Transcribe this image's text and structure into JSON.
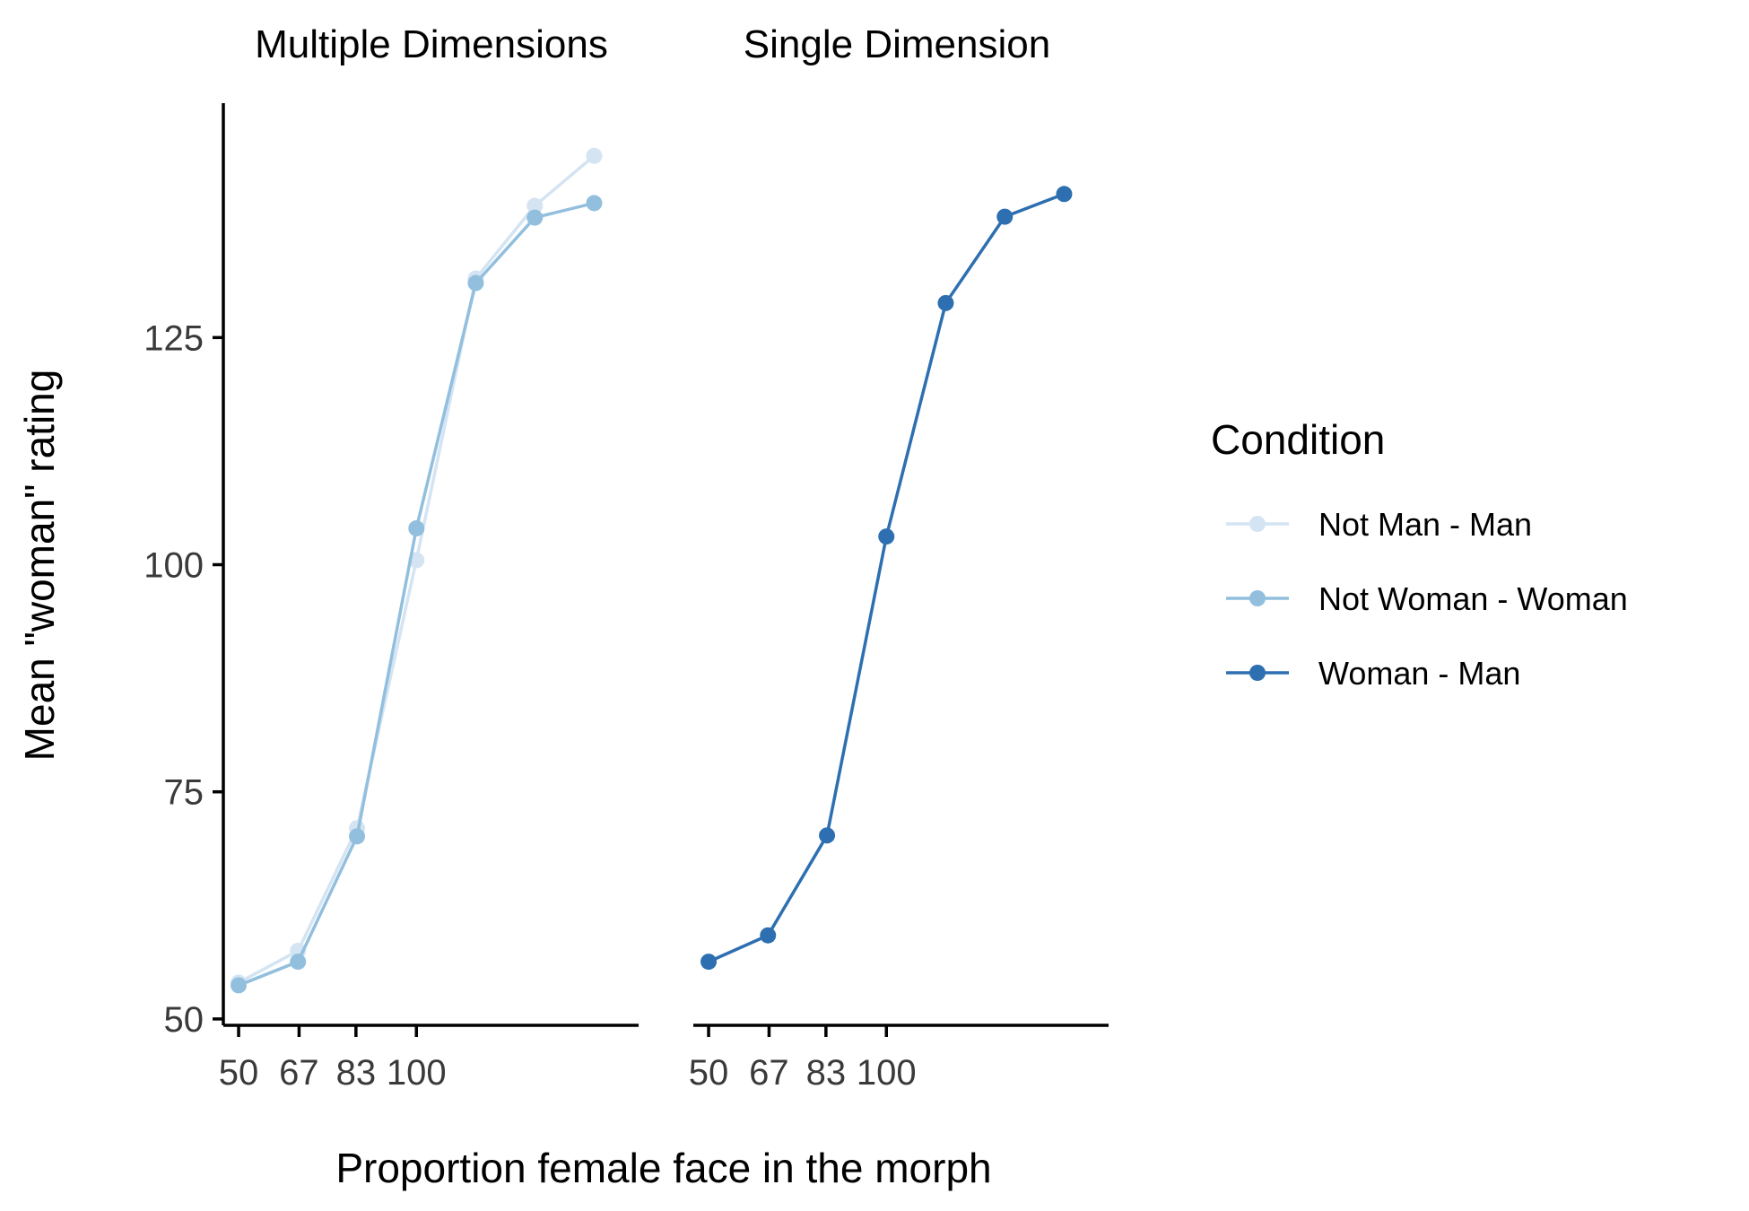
{
  "chart_data": {
    "type": "line",
    "ylabel": "Mean \"woman\" rating",
    "xlabel": "Proportion female face in the morph",
    "y_ticks": [
      50,
      75,
      100,
      125
    ],
    "ylim": [
      49.3,
      150.8
    ],
    "x_ticks": [
      50,
      67,
      83,
      100
    ],
    "xlim": [
      45.7,
      162.5
    ],
    "x": [
      50,
      66.7,
      83.3,
      100,
      116.7,
      133.3,
      150
    ],
    "legend": {
      "title": "Condition",
      "position": "right",
      "entries": [
        {
          "name": "Not Man - Man",
          "color": "#d4e4f3"
        },
        {
          "name": "Not Woman - Woman",
          "color": "#92bfdd"
        },
        {
          "name": "Woman - Man",
          "color": "#2d6fb0"
        }
      ]
    },
    "facets": [
      {
        "title": "Multiple Dimensions",
        "series": [
          {
            "name": "Not Man - Man",
            "color": "#d4e4f3",
            "values": [
              54.0,
              57.5,
              71.0,
              100.5,
              131.5,
              139.5,
              145.0
            ]
          },
          {
            "name": "Not Woman - Woman",
            "color": "#92bfdd",
            "values": [
              53.7,
              56.3,
              70.1,
              104.0,
              131.0,
              138.2,
              139.8
            ]
          }
        ]
      },
      {
        "title": "Single Dimension",
        "series": [
          {
            "name": "Woman - Man",
            "color": "#2d6fb0",
            "values": [
              56.3,
              59.2,
              70.2,
              103.1,
              128.8,
              138.3,
              140.8
            ]
          }
        ]
      }
    ]
  }
}
